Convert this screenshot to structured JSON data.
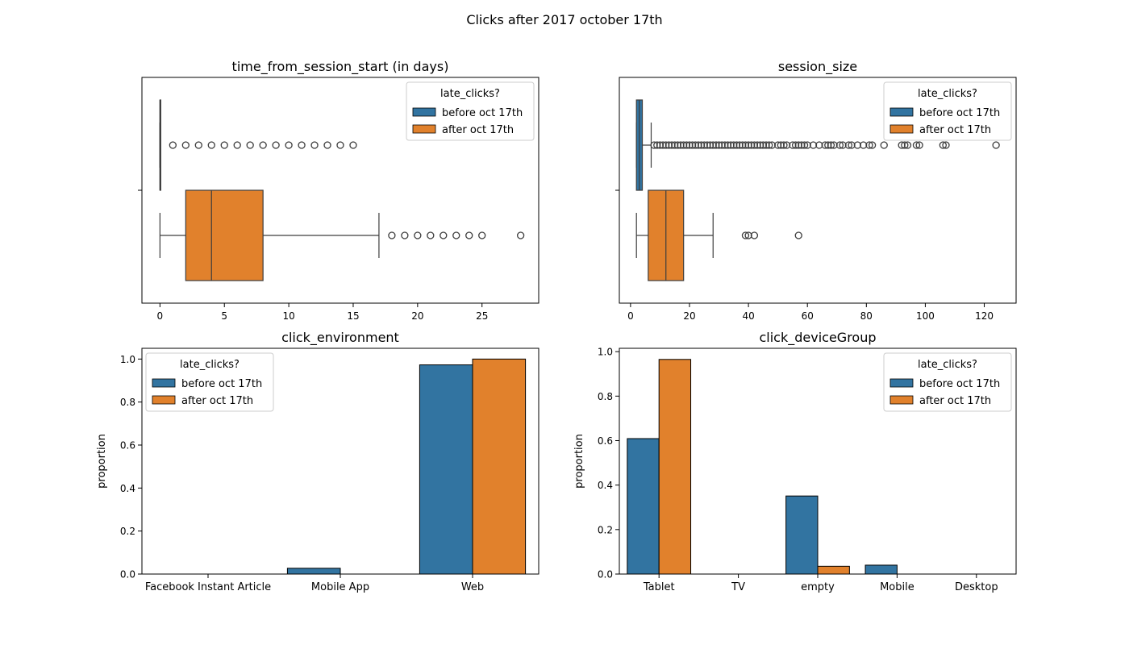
{
  "suptitle": "Clicks after 2017 october 17th",
  "colors": {
    "before": "#3274a1",
    "after": "#e1812c",
    "box_line": "#3d3d3d",
    "bar_edge": "#000000"
  },
  "legend": {
    "title": "late_clicks?",
    "entries": [
      {
        "key": "before",
        "label": "before oct 17th"
      },
      {
        "key": "after",
        "label": "after oct 17th"
      }
    ]
  },
  "chart_data": [
    {
      "type": "boxplot",
      "title": "time_from_session_start (in days)",
      "orientation": "horizontal",
      "xlim": [
        -1.4,
        29.4
      ],
      "xticks": [
        0,
        5,
        10,
        15,
        20,
        25
      ],
      "legend_position": "top-right",
      "series": [
        {
          "name": "before oct 17th",
          "key": "before",
          "whisker_low": 0,
          "q1": 0,
          "median": 0,
          "q3": 0,
          "whisker_high": 0,
          "outliers": [
            1,
            2,
            3,
            4,
            5,
            6,
            7,
            8,
            9,
            10,
            11,
            12,
            13,
            14,
            15
          ]
        },
        {
          "name": "after oct 17th",
          "key": "after",
          "whisker_low": 0,
          "q1": 2,
          "median": 4,
          "q3": 8,
          "whisker_high": 17,
          "outliers": [
            18,
            19,
            20,
            21,
            22,
            23,
            24,
            25,
            28
          ]
        }
      ]
    },
    {
      "type": "boxplot",
      "title": "session_size",
      "orientation": "horizontal",
      "xlim": [
        -3.8,
        130.8
      ],
      "xticks": [
        0,
        20,
        40,
        60,
        80,
        100,
        120
      ],
      "legend_position": "top-right",
      "series": [
        {
          "name": "before oct 17th",
          "key": "before",
          "whisker_low": 2,
          "q1": 2,
          "median": 3,
          "q3": 4,
          "whisker_high": 7,
          "outliers": [
            8,
            9,
            10,
            11,
            12,
            13,
            14,
            15,
            16,
            17,
            18,
            19,
            20,
            21,
            22,
            23,
            24,
            25,
            26,
            27,
            28,
            29,
            30,
            31,
            32,
            33,
            34,
            35,
            36,
            37,
            38,
            39,
            40,
            41,
            42,
            43,
            44,
            45,
            46,
            47,
            48,
            50,
            51,
            52,
            53,
            55,
            56,
            57,
            58,
            59,
            60,
            62,
            64,
            66,
            67,
            68,
            69,
            71,
            72,
            74,
            75,
            77,
            79,
            81,
            82,
            86,
            92,
            93,
            94,
            97,
            98,
            106,
            107,
            124
          ]
        },
        {
          "name": "after oct 17th",
          "key": "after",
          "whisker_low": 2,
          "q1": 6,
          "median": 12,
          "q3": 18,
          "whisker_high": 28,
          "outliers": [
            39,
            40,
            42,
            57
          ]
        }
      ]
    },
    {
      "type": "bar",
      "title": "click_environment",
      "ylabel": "proportion",
      "categories": [
        "Facebook Instant Article",
        "Mobile App",
        "Web"
      ],
      "ylim": [
        0,
        1.05
      ],
      "yticks": [
        0.0,
        0.2,
        0.4,
        0.6,
        0.8,
        1.0
      ],
      "legend_position": "top-left",
      "series": [
        {
          "name": "before oct 17th",
          "key": "before",
          "values": [
            0.0,
            0.027,
            0.973
          ]
        },
        {
          "name": "after oct 17th",
          "key": "after",
          "values": [
            0.0,
            0.0,
            1.0
          ]
        }
      ]
    },
    {
      "type": "bar",
      "title": "click_deviceGroup",
      "ylabel": "proportion",
      "categories": [
        "Tablet",
        "TV",
        "empty",
        "Mobile",
        "Desktop"
      ],
      "ylim": [
        0,
        1.015
      ],
      "yticks": [
        0.0,
        0.2,
        0.4,
        0.6,
        0.8,
        1.0
      ],
      "legend_position": "top-right",
      "series": [
        {
          "name": "before oct 17th",
          "key": "before",
          "values": [
            0.609,
            0.0,
            0.351,
            0.04,
            0.0
          ]
        },
        {
          "name": "after oct 17th",
          "key": "after",
          "values": [
            0.965,
            0.0,
            0.035,
            0.0,
            0.0
          ]
        }
      ]
    }
  ]
}
